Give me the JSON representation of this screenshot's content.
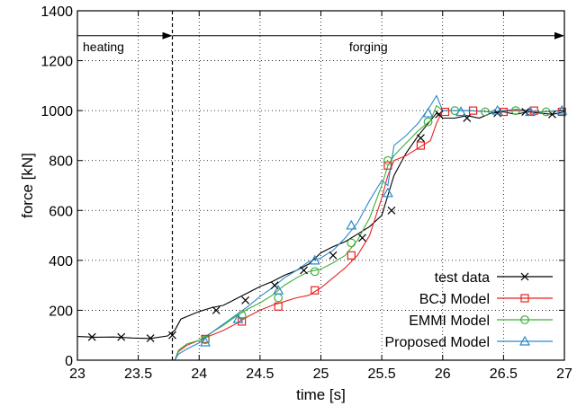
{
  "chart_data": {
    "type": "line",
    "xlabel": "time [s]",
    "ylabel": "force [kN]",
    "xlim": [
      23,
      27
    ],
    "ylim": [
      0,
      1400
    ],
    "xticks": [
      23,
      23.5,
      24,
      24.5,
      25,
      25.5,
      26,
      26.5,
      27
    ],
    "xtick_labels": [
      "23",
      "23.5",
      "24",
      "24.5",
      "25",
      "25.5",
      "26",
      "26.5",
      "27"
    ],
    "yticks": [
      0,
      200,
      400,
      600,
      800,
      1000,
      1200,
      1400
    ],
    "ytick_labels": [
      "0",
      "200",
      "400",
      "600",
      "800",
      "1000",
      "1200",
      "1400"
    ],
    "grid": true,
    "legend_position": "bottom-right",
    "annotations": {
      "heating_label": "heating",
      "forging_label": "forging",
      "phase_boundary_x": 23.78,
      "arrow_y": 1300
    },
    "series": [
      {
        "name": "test data",
        "color": "#000000",
        "marker": "x",
        "x": [
          23,
          23.15,
          23.3,
          23.45,
          23.6,
          23.74,
          23.8,
          23.85,
          23.9,
          24,
          24.1,
          24.2,
          24.3,
          24.4,
          24.5,
          24.6,
          24.7,
          24.8,
          24.9,
          25,
          25.1,
          25.2,
          25.3,
          25.4,
          25.5,
          25.55,
          25.6,
          25.7,
          25.8,
          25.9,
          25.95,
          26,
          26.1,
          26.2,
          26.3,
          26.4,
          26.5,
          26.6,
          26.7,
          26.8,
          26.9,
          27
        ],
        "y": [
          95,
          92,
          93,
          89,
          87,
          97,
          120,
          165,
          175,
          195,
          210,
          220,
          245,
          270,
          295,
          315,
          340,
          360,
          385,
          430,
          455,
          475,
          505,
          535,
          580,
          660,
          740,
          830,
          900,
          960,
          990,
          970,
          970,
          980,
          970,
          990,
          995,
          985,
          995,
          990,
          985,
          995
        ],
        "marker_x": [
          23.12,
          23.36,
          23.6,
          23.78,
          24.14,
          24.38,
          24.62,
          24.86,
          25.1,
          25.34,
          25.58,
          25.82,
          25.97,
          26.2,
          26.45,
          26.68,
          26.9
        ],
        "marker_y": [
          93,
          93,
          88,
          100,
          200,
          240,
          300,
          360,
          420,
          490,
          600,
          890,
          985,
          970,
          990,
          995,
          985
        ]
      },
      {
        "name": "BCJ Model",
        "color": "#e8231f",
        "marker": "square",
        "x": [
          23.8,
          23.83,
          23.9,
          24,
          24.1,
          24.2,
          24.3,
          24.4,
          24.5,
          24.6,
          24.7,
          24.8,
          24.9,
          25,
          25.1,
          25.2,
          25.3,
          25.4,
          25.5,
          25.55,
          25.6,
          25.7,
          25.8,
          25.9,
          25.95,
          26,
          26.2,
          26.4,
          26.6,
          26.8,
          27
        ],
        "y": [
          0,
          35,
          60,
          80,
          100,
          120,
          145,
          175,
          200,
          220,
          235,
          250,
          260,
          290,
          330,
          370,
          420,
          500,
          650,
          740,
          800,
          820,
          850,
          880,
          950,
          1000,
          1000,
          995,
          1000,
          995,
          1000
        ],
        "marker_x": [
          24.05,
          24.35,
          24.65,
          24.95,
          25.25,
          25.55,
          25.82,
          26.02,
          26.25,
          26.5,
          26.75,
          26.98
        ],
        "marker_y": [
          85,
          155,
          215,
          280,
          420,
          780,
          860,
          995,
          1000,
          995,
          1000,
          995
        ]
      },
      {
        "name": "EMMI Model",
        "color": "#3fae3a",
        "marker": "circle",
        "x": [
          23.8,
          23.83,
          23.9,
          24,
          24.1,
          24.2,
          24.3,
          24.4,
          24.5,
          24.6,
          24.7,
          24.8,
          24.9,
          25,
          25.1,
          25.2,
          25.3,
          25.4,
          25.5,
          25.55,
          25.6,
          25.7,
          25.8,
          25.9,
          25.95,
          26,
          26.2,
          26.4,
          26.6,
          26.8,
          27
        ],
        "y": [
          0,
          40,
          65,
          80,
          110,
          140,
          175,
          205,
          230,
          260,
          300,
          330,
          355,
          365,
          390,
          420,
          480,
          570,
          700,
          780,
          820,
          870,
          920,
          960,
          1020,
          1000,
          1000,
          995,
          1005,
          995,
          1000
        ],
        "marker_x": [
          24.05,
          24.35,
          24.65,
          24.95,
          25.25,
          25.55,
          25.88,
          26.1,
          26.35,
          26.6,
          26.85
        ],
        "marker_y": [
          82,
          180,
          250,
          355,
          470,
          800,
          955,
          1000,
          995,
          1000,
          995
        ]
      },
      {
        "name": "Proposed Model",
        "color": "#2a8ac9",
        "marker": "triangle",
        "x": [
          23.8,
          23.83,
          23.9,
          24,
          24.1,
          24.2,
          24.3,
          24.4,
          24.5,
          24.6,
          24.7,
          24.8,
          24.9,
          25,
          25.1,
          25.2,
          25.3,
          25.4,
          25.5,
          25.55,
          25.6,
          25.7,
          25.8,
          25.9,
          25.95,
          26,
          26.2,
          26.4,
          26.6,
          26.8,
          27
        ],
        "y": [
          0,
          25,
          45,
          70,
          110,
          145,
          180,
          215,
          255,
          290,
          330,
          360,
          395,
          410,
          440,
          490,
          550,
          640,
          720,
          700,
          860,
          900,
          950,
          1020,
          1060,
          1000,
          1000,
          995,
          1005,
          995,
          1000
        ],
        "marker_x": [
          24.05,
          24.32,
          24.65,
          24.95,
          25.25,
          25.55,
          25.88,
          26.15,
          26.45,
          26.72,
          26.98
        ],
        "marker_y": [
          72,
          165,
          280,
          400,
          540,
          670,
          990,
          995,
          1000,
          995,
          1000
        ]
      }
    ]
  }
}
